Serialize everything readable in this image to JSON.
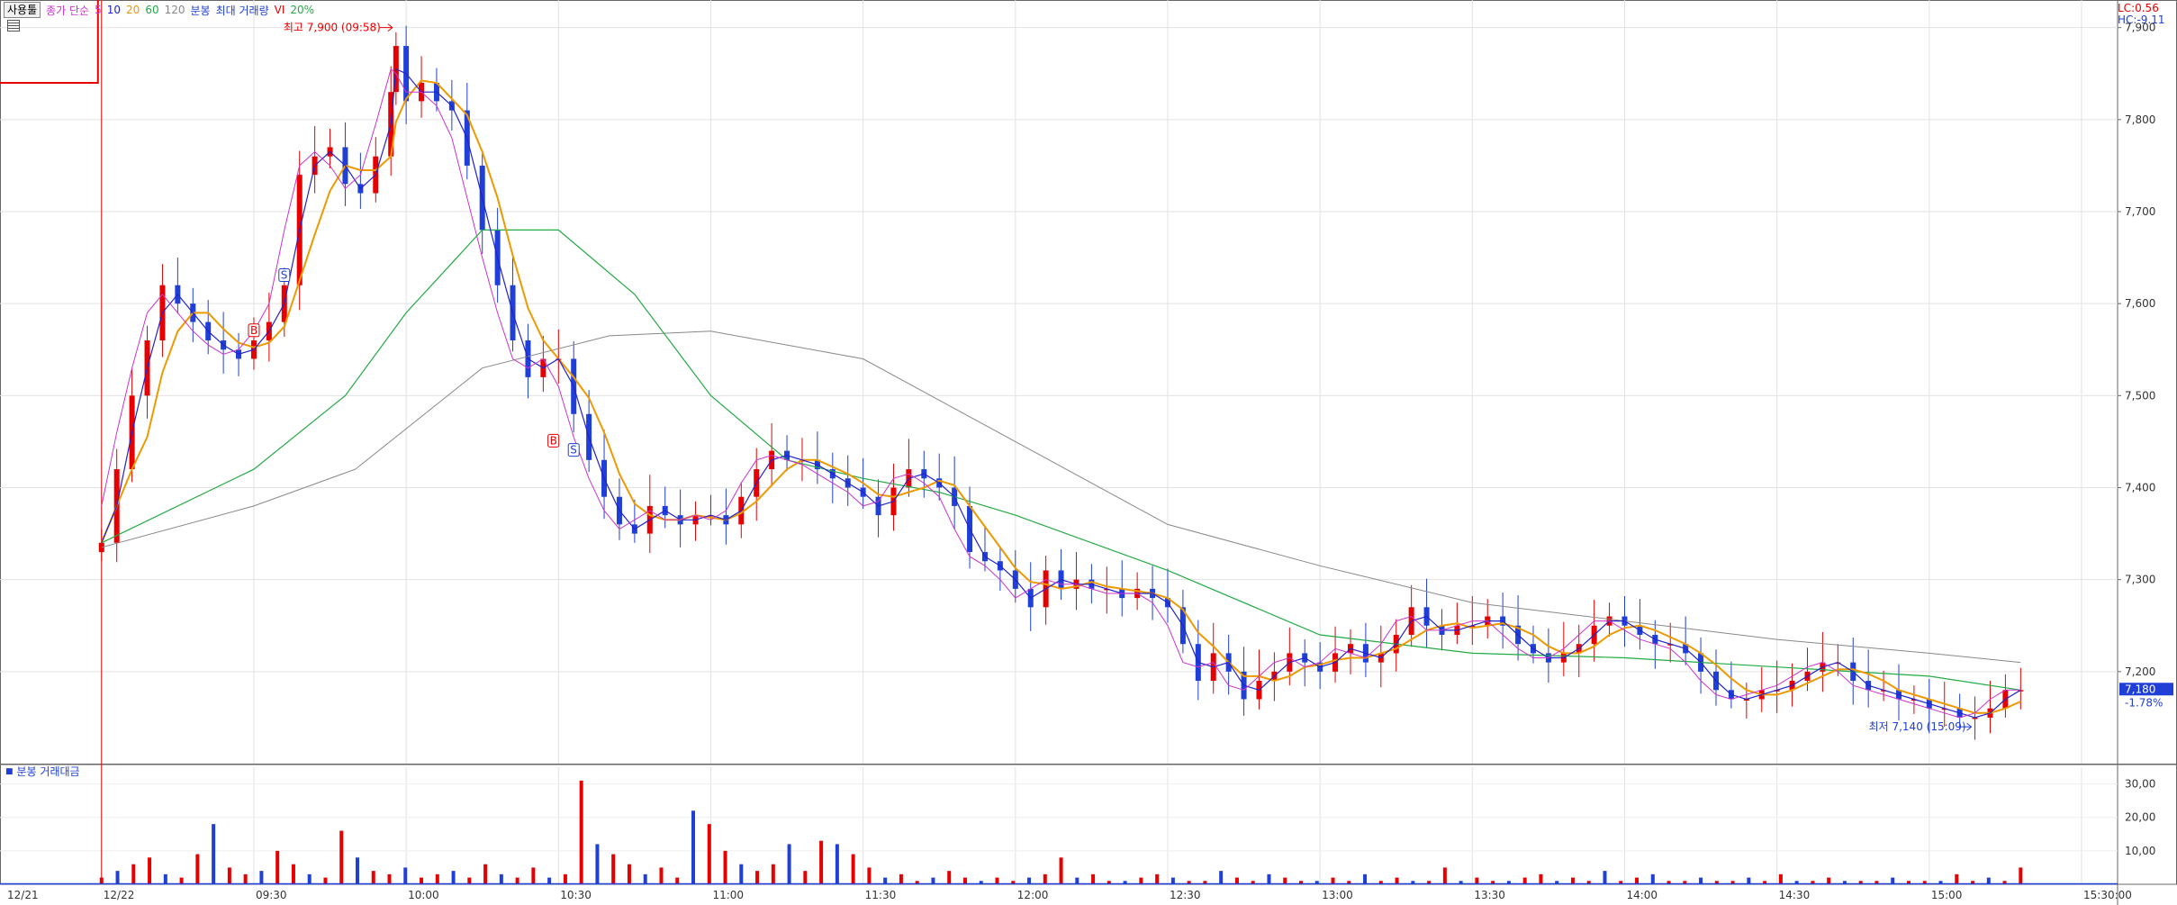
{
  "header": {
    "title_button": "사용툴",
    "price_label": "종가 단순",
    "ma_periods": [
      "5",
      "10",
      "20",
      "60",
      "120"
    ],
    "candle_label": "분봉",
    "max_volume_label": "최대 거래량",
    "vi_label": "VI",
    "vi_percent": "20%",
    "lc_label": "LC:0.56",
    "hc_label": "HC:-9.11",
    "colors": {
      "ma5": "#cc33cc",
      "ma10": "#2222cc",
      "ma20": "#ee9900",
      "ma60": "#22aa44",
      "ma120": "#888888",
      "up": "#e60000",
      "down": "#1f3fd6"
    }
  },
  "volume_header": {
    "label": "분봉 거래대금"
  },
  "annotations": {
    "high_label": "최고 7,900 (09:58)",
    "low_label": "최저 7,140 (15:09)",
    "current_price": "7,180",
    "current_change": "-1.78%"
  },
  "chart_data": [
    {
      "type": "candlestick",
      "title": "",
      "ylim": [
        7100,
        7930
      ],
      "y_ticks": [
        "7,900",
        "7,800",
        "7,700",
        "7,600",
        "7,500",
        "7,400",
        "7,300",
        "7,200"
      ],
      "x_ticks": [
        "12/21",
        "12/22",
        "09:30",
        "10:00",
        "10:30",
        "11:00",
        "11:30",
        "12:00",
        "12:30",
        "13:00",
        "13:30",
        "14:00",
        "14:30",
        "15:00",
        "15:30:00"
      ],
      "x_range": [
        "09:00",
        "15:30"
      ],
      "grid": true,
      "close_path": [
        [
          "09:00",
          7340
        ],
        [
          "09:03",
          7420
        ],
        [
          "09:06",
          7500
        ],
        [
          "09:09",
          7560
        ],
        [
          "09:12",
          7620
        ],
        [
          "09:15",
          7600
        ],
        [
          "09:18",
          7580
        ],
        [
          "09:21",
          7560
        ],
        [
          "09:24",
          7550
        ],
        [
          "09:27",
          7540
        ],
        [
          "09:30",
          7560
        ],
        [
          "09:33",
          7580
        ],
        [
          "09:36",
          7620
        ],
        [
          "09:39",
          7740
        ],
        [
          "09:42",
          7760
        ],
        [
          "09:45",
          7770
        ],
        [
          "09:48",
          7730
        ],
        [
          "09:51",
          7720
        ],
        [
          "09:54",
          7760
        ],
        [
          "09:57",
          7830
        ],
        [
          "09:58",
          7880
        ],
        [
          "10:00",
          7820
        ],
        [
          "10:03",
          7840
        ],
        [
          "10:06",
          7820
        ],
        [
          "10:09",
          7810
        ],
        [
          "10:12",
          7750
        ],
        [
          "10:15",
          7680
        ],
        [
          "10:18",
          7620
        ],
        [
          "10:21",
          7560
        ],
        [
          "10:24",
          7520
        ],
        [
          "10:27",
          7540
        ],
        [
          "10:30",
          7540
        ],
        [
          "10:33",
          7480
        ],
        [
          "10:36",
          7430
        ],
        [
          "10:39",
          7390
        ],
        [
          "10:42",
          7360
        ],
        [
          "10:45",
          7350
        ],
        [
          "10:48",
          7380
        ],
        [
          "10:51",
          7370
        ],
        [
          "10:54",
          7360
        ],
        [
          "10:57",
          7370
        ],
        [
          "11:00",
          7370
        ],
        [
          "11:03",
          7360
        ],
        [
          "11:06",
          7390
        ],
        [
          "11:09",
          7420
        ],
        [
          "11:12",
          7440
        ],
        [
          "11:15",
          7430
        ],
        [
          "11:18",
          7430
        ],
        [
          "11:21",
          7420
        ],
        [
          "11:24",
          7410
        ],
        [
          "11:27",
          7400
        ],
        [
          "11:30",
          7390
        ],
        [
          "11:33",
          7370
        ],
        [
          "11:36",
          7400
        ],
        [
          "11:39",
          7420
        ],
        [
          "11:42",
          7410
        ],
        [
          "11:45",
          7400
        ],
        [
          "11:48",
          7380
        ],
        [
          "11:51",
          7330
        ],
        [
          "11:54",
          7320
        ],
        [
          "11:57",
          7310
        ],
        [
          "12:00",
          7290
        ],
        [
          "12:03",
          7270
        ],
        [
          "12:06",
          7310
        ],
        [
          "12:09",
          7290
        ],
        [
          "12:12",
          7300
        ],
        [
          "12:15",
          7290
        ],
        [
          "12:18",
          7290
        ],
        [
          "12:21",
          7280
        ],
        [
          "12:24",
          7290
        ],
        [
          "12:27",
          7280
        ],
        [
          "12:30",
          7270
        ],
        [
          "12:33",
          7230
        ],
        [
          "12:36",
          7190
        ],
        [
          "12:39",
          7220
        ],
        [
          "12:42",
          7200
        ],
        [
          "12:45",
          7170
        ],
        [
          "12:48",
          7190
        ],
        [
          "12:51",
          7200
        ],
        [
          "12:54",
          7220
        ],
        [
          "12:57",
          7210
        ],
        [
          "13:00",
          7200
        ],
        [
          "13:03",
          7220
        ],
        [
          "13:06",
          7230
        ],
        [
          "13:09",
          7210
        ],
        [
          "13:12",
          7220
        ],
        [
          "13:15",
          7240
        ],
        [
          "13:18",
          7270
        ],
        [
          "13:21",
          7250
        ],
        [
          "13:24",
          7240
        ],
        [
          "13:27",
          7250
        ],
        [
          "13:30",
          7250
        ],
        [
          "13:33",
          7260
        ],
        [
          "13:36",
          7250
        ],
        [
          "13:39",
          7230
        ],
        [
          "13:42",
          7220
        ],
        [
          "13:45",
          7210
        ],
        [
          "13:48",
          7220
        ],
        [
          "13:51",
          7230
        ],
        [
          "13:54",
          7250
        ],
        [
          "13:57",
          7260
        ],
        [
          "14:00",
          7250
        ],
        [
          "14:03",
          7240
        ],
        [
          "14:06",
          7230
        ],
        [
          "14:09",
          7230
        ],
        [
          "14:12",
          7220
        ],
        [
          "14:15",
          7200
        ],
        [
          "14:18",
          7180
        ],
        [
          "14:21",
          7170
        ],
        [
          "14:24",
          7170
        ],
        [
          "14:27",
          7180
        ],
        [
          "14:30",
          7180
        ],
        [
          "14:33",
          7190
        ],
        [
          "14:36",
          7200
        ],
        [
          "14:39",
          7210
        ],
        [
          "14:42",
          7210
        ],
        [
          "14:45",
          7190
        ],
        [
          "14:48",
          7180
        ],
        [
          "14:51",
          7180
        ],
        [
          "14:54",
          7170
        ],
        [
          "14:57",
          7170
        ],
        [
          "15:00",
          7160
        ],
        [
          "15:03",
          7160
        ],
        [
          "15:06",
          7150
        ],
        [
          "15:09",
          7150
        ],
        [
          "15:12",
          7160
        ],
        [
          "15:15",
          7180
        ],
        [
          "15:18",
          7180
        ]
      ],
      "ma_paths": {
        "ma60": [
          [
            "09:00",
            7340
          ],
          [
            "09:30",
            7420
          ],
          [
            "09:48",
            7500
          ],
          [
            "10:00",
            7590
          ],
          [
            "10:15",
            7680
          ],
          [
            "10:30",
            7680
          ],
          [
            "10:45",
            7610
          ],
          [
            "11:00",
            7500
          ],
          [
            "11:15",
            7430
          ],
          [
            "11:30",
            7410
          ],
          [
            "11:45",
            7395
          ],
          [
            "12:00",
            7370
          ],
          [
            "12:30",
            7310
          ],
          [
            "13:00",
            7240
          ],
          [
            "13:30",
            7220
          ],
          [
            "14:00",
            7215
          ],
          [
            "14:30",
            7205
          ],
          [
            "15:00",
            7195
          ],
          [
            "15:18",
            7180
          ]
        ],
        "ma120": [
          [
            "09:00",
            7335
          ],
          [
            "09:30",
            7380
          ],
          [
            "09:50",
            7420
          ],
          [
            "10:15",
            7530
          ],
          [
            "10:40",
            7565
          ],
          [
            "11:00",
            7570
          ],
          [
            "11:30",
            7540
          ],
          [
            "12:00",
            7450
          ],
          [
            "12:30",
            7360
          ],
          [
            "13:00",
            7315
          ],
          [
            "13:30",
            7275
          ],
          [
            "14:00",
            7255
          ],
          [
            "14:30",
            7235
          ],
          [
            "15:00",
            7220
          ],
          [
            "15:18",
            7210
          ]
        ]
      },
      "events": [
        {
          "label": "S",
          "time": "09:36",
          "price": 7630
        },
        {
          "label": "B",
          "time": "09:30",
          "price": 7570
        },
        {
          "label": "B",
          "time": "10:29",
          "price": 7450
        },
        {
          "label": "S",
          "time": "10:33",
          "price": 7440
        }
      ]
    },
    {
      "type": "bar",
      "title": "",
      "ylim": [
        0,
        35
      ],
      "y_ticks": [
        "30,00",
        "20,00",
        "10,00"
      ],
      "values_pattern": [
        2,
        4,
        6,
        8,
        3,
        2,
        9,
        18,
        5,
        3,
        4,
        10,
        6,
        3,
        2,
        16,
        8,
        4,
        3,
        5,
        2,
        3,
        4,
        2,
        6,
        3,
        2,
        5,
        2,
        3,
        31,
        12,
        9,
        6,
        3,
        5,
        2,
        22,
        18,
        10,
        6,
        4,
        6,
        12,
        4,
        13,
        12,
        9,
        5,
        2,
        3,
        1,
        2,
        4,
        2,
        1,
        2,
        1,
        2,
        3,
        8,
        2,
        3,
        1,
        1,
        2,
        3,
        2,
        1,
        1,
        4,
        2,
        1,
        3,
        2,
        1,
        1,
        2,
        1,
        3,
        1,
        2,
        1,
        1,
        5,
        1,
        2,
        1,
        1,
        2,
        3,
        1,
        2,
        1,
        4,
        1,
        2,
        3,
        1,
        1,
        2,
        1,
        1,
        2,
        1,
        3,
        1,
        1,
        2,
        1,
        1,
        1,
        2,
        1,
        1,
        1,
        3,
        1,
        2,
        1,
        5
      ]
    }
  ]
}
